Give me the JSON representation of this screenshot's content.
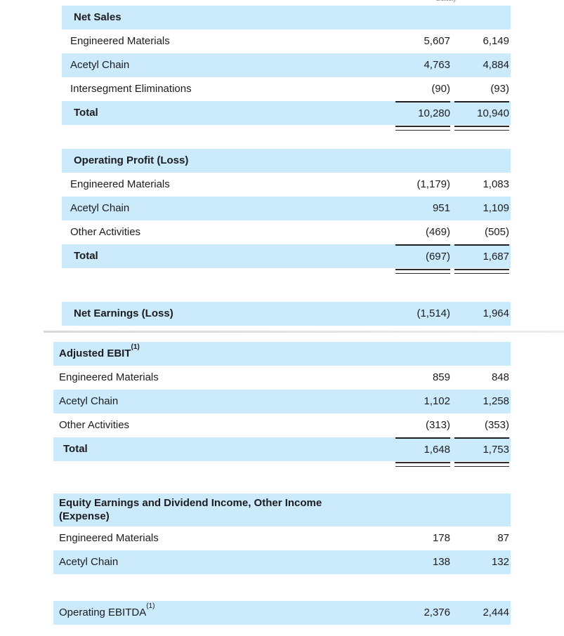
{
  "meta": {
    "clipped_top_text": "data)"
  },
  "colors": {
    "row_highlight": "#cbeafb",
    "text": "#1c1c1e",
    "rule": "#1f1f1f",
    "divider": "#dedede"
  },
  "net_sales": {
    "title": "Net Sales",
    "rows": [
      {
        "label": "Engineered Materials",
        "col1": "5,607",
        "col2": "6,149"
      },
      {
        "label": "Acetyl Chain",
        "col1": "4,763",
        "col2": "4,884"
      },
      {
        "label": "Intersegment Eliminations",
        "col1": "(90)",
        "col2": "(93)"
      }
    ],
    "total": {
      "label": "Total",
      "col1": "10,280",
      "col2": "10,940"
    }
  },
  "operating_profit": {
    "title": "Operating Profit (Loss)",
    "rows": [
      {
        "label": "Engineered Materials",
        "col1": "(1,179)",
        "col2": "1,083"
      },
      {
        "label": "Acetyl Chain",
        "col1": "951",
        "col2": "1,109"
      },
      {
        "label": "Other Activities",
        "col1": "(469)",
        "col2": "(505)"
      }
    ],
    "total": {
      "label": "Total",
      "col1": "(697)",
      "col2": "1,687"
    }
  },
  "net_earnings": {
    "label": "Net Earnings (Loss)",
    "col1": "(1,514)",
    "col2": "1,964"
  },
  "adjusted_ebit": {
    "title": "Adjusted EBIT",
    "title_sup": "(1)",
    "rows": [
      {
        "label": "Engineered Materials",
        "col1": "859",
        "col2": "848"
      },
      {
        "label": "Acetyl Chain",
        "col1": "1,102",
        "col2": "1,258"
      },
      {
        "label": "Other Activities",
        "col1": "(313)",
        "col2": "(353)"
      }
    ],
    "total": {
      "label": "Total",
      "col1": "1,648",
      "col2": "1,753"
    }
  },
  "equity_earnings": {
    "title": "Equity Earnings and Dividend Income, Other Income (Expense)",
    "rows": [
      {
        "label": "Engineered Materials",
        "col1": "178",
        "col2": "87"
      },
      {
        "label": "Acetyl Chain",
        "col1": "138",
        "col2": "132"
      }
    ]
  },
  "operating_ebitda": {
    "label": "Operating EBITDA",
    "label_sup": "(1)",
    "col1": "2,376",
    "col2": "2,444"
  }
}
